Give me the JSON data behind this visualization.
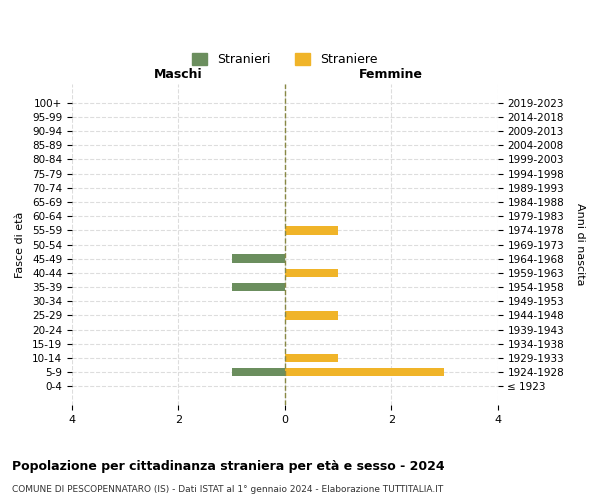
{
  "age_groups": [
    "100+",
    "95-99",
    "90-94",
    "85-89",
    "80-84",
    "75-79",
    "70-74",
    "65-69",
    "60-64",
    "55-59",
    "50-54",
    "45-49",
    "40-44",
    "35-39",
    "30-34",
    "25-29",
    "20-24",
    "15-19",
    "10-14",
    "5-9",
    "0-4"
  ],
  "birth_years": [
    "≤ 1923",
    "1924-1928",
    "1929-1933",
    "1934-1938",
    "1939-1943",
    "1944-1948",
    "1949-1953",
    "1954-1958",
    "1959-1963",
    "1964-1968",
    "1969-1973",
    "1974-1978",
    "1979-1983",
    "1984-1988",
    "1989-1993",
    "1994-1998",
    "1999-2003",
    "2004-2008",
    "2009-2013",
    "2014-2018",
    "2019-2023"
  ],
  "maschi": [
    0,
    0,
    0,
    0,
    0,
    0,
    0,
    0,
    0,
    0,
    0,
    -1,
    0,
    -1,
    0,
    0,
    0,
    0,
    0,
    -1,
    0
  ],
  "femmine": [
    0,
    0,
    0,
    0,
    0,
    0,
    0,
    0,
    0,
    1,
    0,
    0,
    1,
    0,
    0,
    1,
    0,
    0,
    1,
    3,
    0
  ],
  "color_maschi": "#6b8e5e",
  "color_femmine": "#f0b429",
  "title": "Popolazione per cittadinanza straniera per età e sesso - 2024",
  "subtitle": "COMUNE DI PESCOPENNATARO (IS) - Dati ISTAT al 1° gennaio 2024 - Elaborazione TUTTITALIA.IT",
  "xlabel_left": "Maschi",
  "xlabel_right": "Femmine",
  "ylabel_left": "Fasce di età",
  "ylabel_right": "Anni di nascita",
  "legend_maschi": "Stranieri",
  "legend_femmine": "Straniere",
  "xlim": [
    -4,
    4
  ],
  "xticks": [
    -4,
    -2,
    0,
    2,
    4
  ],
  "xticklabels": [
    "4",
    "2",
    "0",
    "2",
    "4"
  ],
  "background_color": "#ffffff",
  "grid_color": "#dddddd",
  "bar_height": 0.6
}
